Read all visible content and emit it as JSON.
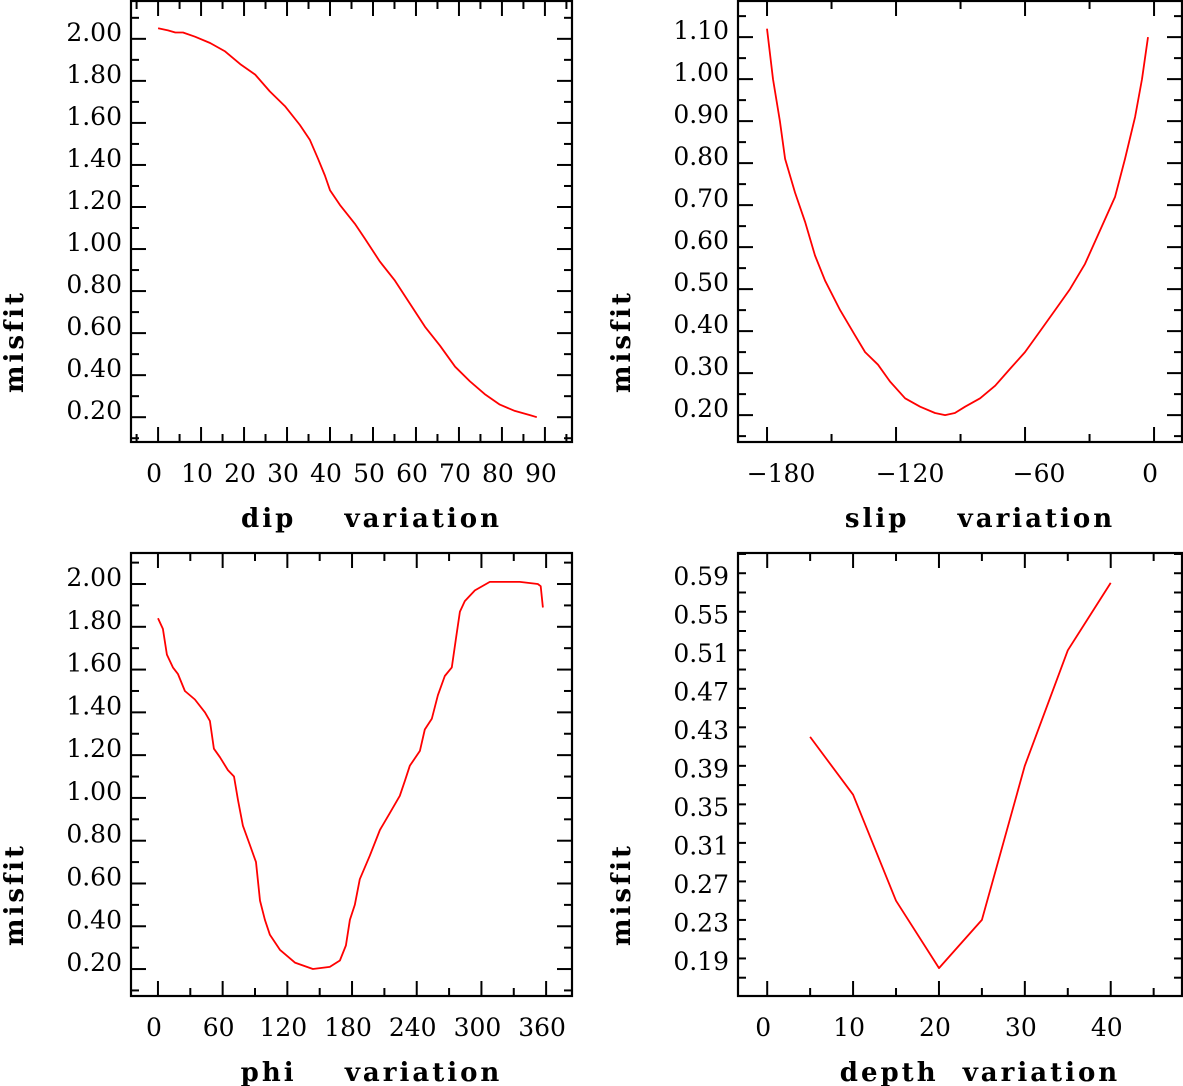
{
  "chart_data": [
    {
      "type": "line",
      "xlabel": "dip    variation",
      "ylabel": "misfit",
      "xlim": [
        -6.3,
        96.3
      ],
      "ylim": [
        0.082,
        2.18
      ],
      "xticks": [
        0,
        10,
        20,
        30,
        40,
        50,
        60,
        70,
        80,
        90
      ],
      "xticklabels": [
        "0",
        "10",
        "20",
        "30",
        "40",
        "50",
        "60",
        "70",
        "80",
        "90"
      ],
      "xminor": 5,
      "yticks": [
        0.2,
        0.4,
        0.6,
        0.8,
        1.0,
        1.2,
        1.4,
        1.6,
        1.8,
        2.0
      ],
      "yticklabels": [
        "0.20",
        "0.40",
        "0.60",
        "0.80",
        "1.00",
        "1.20",
        "1.40",
        "1.60",
        "1.80",
        "2.00"
      ],
      "yminor": 0.1,
      "color": "#ff0000",
      "x": [
        0,
        2.3,
        4,
        5.8,
        8.6,
        12.1,
        15.6,
        19.1,
        22.6,
        26.0,
        29.5,
        33.0,
        35.3,
        37.2,
        38.8,
        40.0,
        42.3,
        45.8,
        48.1,
        51.6,
        55.1,
        58.6,
        62.1,
        65.6,
        69.1,
        72.6,
        76.0,
        79.5,
        83.0,
        86.5,
        88.1
      ],
      "y": [
        2.05,
        2.04,
        2.03,
        2.03,
        2.01,
        1.98,
        1.94,
        1.88,
        1.83,
        1.75,
        1.68,
        1.59,
        1.52,
        1.43,
        1.35,
        1.28,
        1.21,
        1.12,
        1.05,
        0.94,
        0.85,
        0.74,
        0.63,
        0.54,
        0.44,
        0.37,
        0.31,
        0.26,
        0.23,
        0.21,
        0.2
      ]
    },
    {
      "type": "line",
      "xlabel": "slip    variation",
      "ylabel": "misfit",
      "xlim": [
        -193.5,
        13
      ],
      "ylim": [
        0.136,
        1.186
      ],
      "xticks": [
        -180,
        -120,
        -60,
        0
      ],
      "xticklabels": [
        "−180",
        "−120",
        "−60",
        "0"
      ],
      "xminor": 30,
      "yticks": [
        0.2,
        0.3,
        0.4,
        0.5,
        0.6,
        0.7,
        0.8,
        0.9,
        1.0,
        1.1
      ],
      "yticklabels": [
        "0.20",
        "0.30",
        "0.40",
        "0.50",
        "0.60",
        "0.70",
        "0.80",
        "0.90",
        "1.00",
        "1.10"
      ],
      "yminor": 0.05,
      "color": "#ff0000",
      "x": [
        -180,
        -177.2,
        -174,
        -171.6,
        -167,
        -162.3,
        -157.7,
        -153,
        -146,
        -139.1,
        -134.4,
        -128.4,
        -122.8,
        -115.8,
        -108.8,
        -101.9,
        -97.2,
        -92.6,
        -87.9,
        -80.9,
        -73.9,
        -67,
        -60,
        -53,
        -46,
        -39.1,
        -32.1,
        -25.1,
        -18.1,
        -13.5,
        -8.8,
        -5.6,
        -2.8
      ],
      "y": [
        1.12,
        1.0,
        0.9,
        0.81,
        0.73,
        0.66,
        0.58,
        0.52,
        0.45,
        0.39,
        0.35,
        0.32,
        0.28,
        0.24,
        0.22,
        0.205,
        0.2,
        0.205,
        0.22,
        0.24,
        0.27,
        0.31,
        0.35,
        0.4,
        0.45,
        0.5,
        0.56,
        0.64,
        0.72,
        0.81,
        0.91,
        1.0,
        1.1
      ]
    },
    {
      "type": "line",
      "xlabel": "phi    variation",
      "ylabel": "misfit",
      "xlim": [
        -25,
        384
      ],
      "ylim": [
        0.074,
        2.145
      ],
      "xticks": [
        0,
        60,
        120,
        180,
        240,
        300,
        360
      ],
      "xticklabels": [
        "0",
        "60",
        "120",
        "180",
        "240",
        "300",
        "360"
      ],
      "xminor": 30,
      "yticks": [
        0.2,
        0.4,
        0.6,
        0.8,
        1.0,
        1.2,
        1.4,
        1.6,
        1.8,
        2.0
      ],
      "yticklabels": [
        "0.20",
        "0.40",
        "0.60",
        "0.80",
        "1.00",
        "1.20",
        "1.40",
        "1.60",
        "1.80",
        "2.00"
      ],
      "yminor": 0.1,
      "color": "#ff0000",
      "x": [
        0,
        4.6,
        8.3,
        13.9,
        18.5,
        25,
        34.3,
        43.6,
        48.2,
        51.9,
        57.5,
        64.9,
        70.5,
        74.2,
        78.8,
        85.3,
        90.9,
        94.6,
        99.2,
        103.8,
        113.1,
        127,
        143.7,
        159.4,
        168.7,
        174.3,
        178,
        182.6,
        187.2,
        196.5,
        205.8,
        215.1,
        224.3,
        229,
        233.6,
        242.9,
        247.5,
        254,
        259.6,
        266,
        272.5,
        276.2,
        280,
        284.6,
        293.9,
        307.8,
        335.6,
        352.3,
        355,
        357
      ],
      "y": [
        1.84,
        1.79,
        1.67,
        1.61,
        1.58,
        1.5,
        1.46,
        1.4,
        1.36,
        1.23,
        1.19,
        1.13,
        1.1,
        0.99,
        0.87,
        0.78,
        0.7,
        0.52,
        0.43,
        0.36,
        0.29,
        0.23,
        0.2,
        0.21,
        0.24,
        0.31,
        0.43,
        0.5,
        0.62,
        0.73,
        0.85,
        0.93,
        1.01,
        1.08,
        1.15,
        1.22,
        1.32,
        1.37,
        1.48,
        1.57,
        1.61,
        1.74,
        1.87,
        1.92,
        1.97,
        2.01,
        2.01,
        2.0,
        1.99,
        1.89
      ]
    },
    {
      "type": "line",
      "xlabel": "depth  variation",
      "ylabel": "misfit",
      "xlim": [
        -3.4,
        48.3
      ],
      "ylim": [
        0.161,
        0.621
      ],
      "xticks": [
        0,
        10,
        20,
        30,
        40
      ],
      "xticklabels": [
        "0",
        "10",
        "20",
        "30",
        "40"
      ],
      "xminor": 5,
      "yticks": [
        0.19,
        0.23,
        0.27,
        0.31,
        0.35,
        0.39,
        0.43,
        0.47,
        0.51,
        0.55,
        0.59
      ],
      "yticklabels": [
        "0.19",
        "0.23",
        "0.27",
        "0.31",
        "0.35",
        "0.39",
        "0.43",
        "0.47",
        "0.51",
        "0.55",
        "0.59"
      ],
      "yminor": 0.02,
      "color": "#ff0000",
      "x": [
        5,
        10,
        15,
        20,
        25,
        30,
        35,
        40
      ],
      "y": [
        0.43,
        0.37,
        0.26,
        0.19,
        0.24,
        0.4,
        0.52,
        0.59
      ]
    }
  ]
}
